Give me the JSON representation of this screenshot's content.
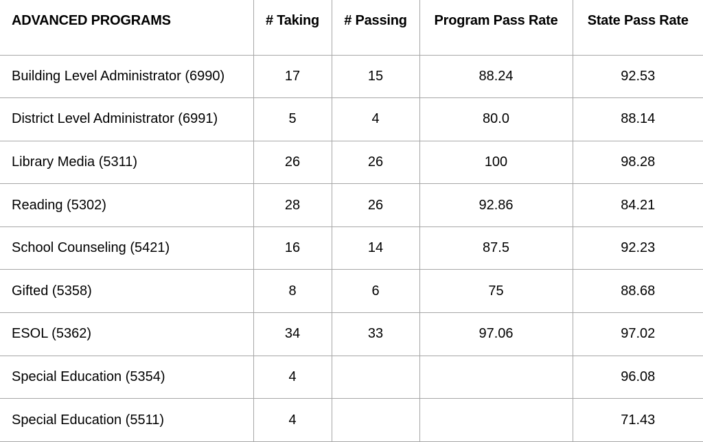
{
  "table": {
    "headers": [
      "ADVANCED PROGRAMS",
      "# Taking",
      "# Passing",
      "Program Pass Rate",
      "State Pass Rate"
    ],
    "rows": [
      [
        "Building Level Administrator (6990)",
        "17",
        "15",
        "88.24",
        "92.53"
      ],
      [
        "District Level Administrator (6991)",
        "5",
        "4",
        "80.0",
        "88.14"
      ],
      [
        "Library Media (5311)",
        "26",
        "26",
        "100",
        "98.28"
      ],
      [
        "Reading (5302)",
        "28",
        "26",
        "92.86",
        "84.21"
      ],
      [
        "School Counseling (5421)",
        "16",
        "14",
        "87.5",
        "92.23"
      ],
      [
        "Gifted (5358)",
        "8",
        "6",
        "75",
        "88.68"
      ],
      [
        "ESOL (5362)",
        "34",
        "33",
        "97.06",
        "97.02"
      ],
      [
        "Special Education (5354)",
        "4",
        "",
        "",
        "96.08"
      ],
      [
        "Special Education (5511)",
        "4",
        "",
        "",
        "71.43"
      ]
    ]
  }
}
